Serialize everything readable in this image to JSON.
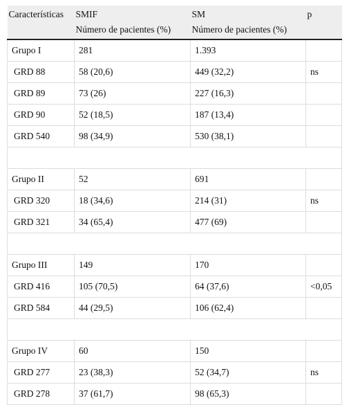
{
  "header": {
    "columns": [
      {
        "label": "Características"
      },
      {
        "label": "SMIF",
        "sub": "Número de pacientes (%)"
      },
      {
        "label": "SM",
        "sub": "Número de pacientes (%)"
      },
      {
        "label": "p"
      }
    ]
  },
  "table": {
    "groups": [
      {
        "rows": [
          {
            "label": "Grupo I",
            "smif": "281",
            "sm": "1.393"
          },
          {
            "label": "GRD 88",
            "smif": "58 (20,6)",
            "sm": "449 (32,2)",
            "p": "ns"
          },
          {
            "label": "GRD 89",
            "smif": "73 (26)",
            "sm": "227 (16,3)"
          },
          {
            "label": "GRD 90",
            "smif": "52 (18,5)",
            "sm": "187 (13,4)"
          },
          {
            "label": "GRD 540",
            "smif": "98 (34,9)",
            "sm": "530 (38,1)"
          }
        ]
      },
      {
        "rows": [
          {
            "label": "Grupo II",
            "smif": "52",
            "sm": "691"
          },
          {
            "label": "GRD 320",
            "smif": "18 (34,6)",
            "sm": "214 (31)",
            "p": "ns"
          },
          {
            "label": "GRD 321",
            "smif": "34 (65,4)",
            "sm": "477 (69)"
          }
        ]
      },
      {
        "rows": [
          {
            "label": "Grupo III",
            "smif": "149",
            "sm": "170"
          },
          {
            "label": "GRD 416",
            "smif": "105 (70,5)",
            "sm": "64 (37,6)",
            "p": "<0,05"
          },
          {
            "label": "GRD 584",
            "smif": "44 (29,5)",
            "sm": "106 (62,4)"
          }
        ]
      },
      {
        "rows": [
          {
            "label": "Grupo IV",
            "smif": "60",
            "sm": "150"
          },
          {
            "label": "GRD 277",
            "smif": "23 (38,3)",
            "sm": "52 (34,7)",
            "p": "ns"
          },
          {
            "label": "GRD 278",
            "smif": "37 (61,7)",
            "sm": "98 (65,3)"
          }
        ]
      }
    ]
  }
}
